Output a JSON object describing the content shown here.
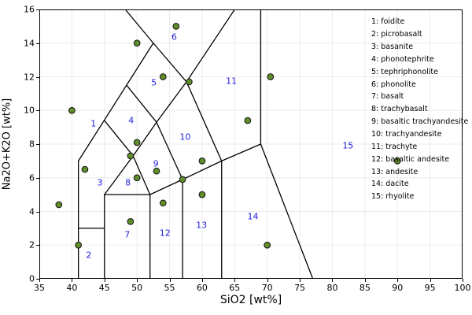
{
  "figure": {
    "xlabel": "SiO2 [wt%]",
    "ylabel": "Na2O+K2O [wt%]"
  },
  "axes": {
    "xlim": [
      35,
      100
    ],
    "ylim": [
      0,
      16
    ],
    "x_ticks": [
      35,
      40,
      45,
      50,
      55,
      60,
      65,
      70,
      75,
      80,
      85,
      90,
      95,
      100
    ],
    "y_ticks": [
      0,
      2,
      4,
      6,
      8,
      10,
      12,
      14,
      16
    ],
    "grid": true
  },
  "chart_data": {
    "type": "scatter",
    "title": "",
    "xlabel": "SiO2 [wt%]",
    "ylabel": "Na2O+K2O [wt%]",
    "xlim": [
      35,
      100
    ],
    "ylim": [
      0,
      16
    ],
    "grid": true,
    "points": [
      [
        38,
        4.4
      ],
      [
        40,
        10
      ],
      [
        41,
        2
      ],
      [
        42,
        6.5
      ],
      [
        49,
        3.4
      ],
      [
        49,
        7.3
      ],
      [
        50,
        6
      ],
      [
        50,
        8.1
      ],
      [
        50,
        14
      ],
      [
        53,
        6.4
      ],
      [
        54,
        4.5
      ],
      [
        54,
        12
      ],
      [
        56,
        15
      ],
      [
        57,
        5.9
      ],
      [
        58,
        11.7
      ],
      [
        60,
        5
      ],
      [
        60,
        7
      ],
      [
        67,
        9.4
      ],
      [
        70,
        2
      ],
      [
        70.5,
        12
      ],
      [
        90,
        7
      ]
    ],
    "tas_boundaries": [
      [
        41,
        0,
        41,
        7
      ],
      [
        41,
        3,
        45,
        3
      ],
      [
        45,
        0,
        45,
        5
      ],
      [
        45,
        5,
        52,
        5
      ],
      [
        52,
        0,
        52,
        5
      ],
      [
        57,
        0,
        57,
        5.9
      ],
      [
        63,
        0,
        63,
        7
      ],
      [
        52,
        5,
        57,
        5.9
      ],
      [
        57,
        5.9,
        63,
        7
      ],
      [
        63,
        7,
        69,
        8
      ],
      [
        69,
        8,
        69,
        16
      ],
      [
        77,
        0,
        69,
        8
      ],
      [
        45,
        5,
        49.4,
        7.3
      ],
      [
        49.4,
        7.3,
        52,
        5
      ],
      [
        41,
        7,
        52.5,
        14
      ],
      [
        45,
        9.4,
        49.4,
        7.3
      ],
      [
        49.4,
        7.3,
        53,
        9.3
      ],
      [
        48.4,
        11.5,
        53,
        9.3
      ],
      [
        53,
        9.3,
        57,
        5.9
      ],
      [
        52.5,
        14,
        57.6,
        11.7
      ],
      [
        53,
        9.3,
        57.6,
        11.7
      ],
      [
        57.6,
        11.7,
        63,
        7
      ],
      [
        52.5,
        14,
        48.2,
        16
      ],
      [
        57.6,
        11.7,
        65,
        16
      ]
    ],
    "field_labels": [
      {
        "n": "1",
        "x": 43.3,
        "y": 9.2
      },
      {
        "n": "2",
        "x": 42.6,
        "y": 1.4
      },
      {
        "n": "3",
        "x": 44.3,
        "y": 5.7
      },
      {
        "n": "4",
        "x": 49.1,
        "y": 9.4
      },
      {
        "n": "5",
        "x": 52.6,
        "y": 11.65
      },
      {
        "n": "6",
        "x": 55.7,
        "y": 14.35
      },
      {
        "n": "7",
        "x": 48.5,
        "y": 2.6
      },
      {
        "n": "8",
        "x": 48.6,
        "y": 5.7
      },
      {
        "n": "9",
        "x": 52.9,
        "y": 6.85
      },
      {
        "n": "10",
        "x": 57.4,
        "y": 8.4
      },
      {
        "n": "11",
        "x": 64.5,
        "y": 11.75
      },
      {
        "n": "12",
        "x": 54.3,
        "y": 2.7
      },
      {
        "n": "13",
        "x": 59.9,
        "y": 3.2
      },
      {
        "n": "14",
        "x": 67.8,
        "y": 3.7
      },
      {
        "n": "15",
        "x": 82.4,
        "y": 7.9
      }
    ],
    "legend_items": [
      "1: foidite",
      "2: picrobasalt",
      "3: basanite",
      "4: phonotephrite",
      "5: tephriphonolite",
      "6: phonolite",
      "7: basalt",
      "8: trachybasalt",
      "9: basaltic trachyandesite",
      "10: trachyandesite",
      "11: trachyte",
      "12: basaltic andesite",
      "13: andesite",
      "14: dacite",
      "15: rhyolite"
    ],
    "legend_position": "right-inside"
  },
  "style": {
    "point_fill": "#5f8f28",
    "point_edge": "#1c1c1c",
    "field_label_color": "#2222dd",
    "boundary_line_color": "#000000",
    "grid_color": "#ebebeb",
    "frame_color": "#000000",
    "background": "#ffffff"
  }
}
